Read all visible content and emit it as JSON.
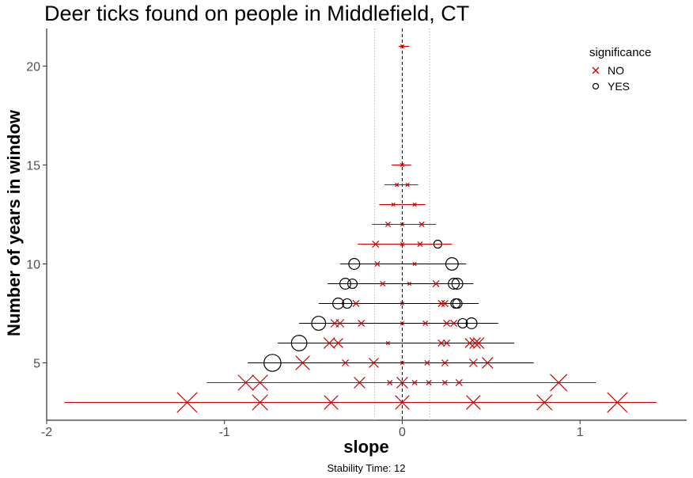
{
  "chart_data": {
    "type": "scatter",
    "title": "Deer ticks found on people in Middlefield, CT",
    "xlabel": "slope",
    "ylabel": "Number of years in window",
    "caption": "Stability Time: 12",
    "xlim": [
      -2.0,
      1.6
    ],
    "ylim": [
      2.1,
      21.9
    ],
    "x_ticks": [
      -2,
      -1,
      0,
      1
    ],
    "y_ticks": [
      5,
      10,
      15,
      20
    ],
    "reference_line": 0,
    "bounds": [
      -0.155,
      0.155
    ],
    "grid": false,
    "legend": {
      "title": "significance",
      "position": "top-right",
      "entries": [
        {
          "label": "NO",
          "marker": "x",
          "color": "#cc0000"
        },
        {
          "label": "YES",
          "marker": "circle",
          "color": "#000000"
        }
      ]
    },
    "ranges": [
      {
        "y": 21,
        "min": -0.02,
        "max": 0.04,
        "color": "#cc0000"
      },
      {
        "y": 15,
        "min": -0.06,
        "max": 0.05,
        "color": "#cc0000"
      },
      {
        "y": 14,
        "min": -0.1,
        "max": 0.09,
        "color": "#cc0000"
      },
      {
        "y": 13,
        "min": -0.13,
        "max": 0.13,
        "color": "#cc0000"
      },
      {
        "y": 12,
        "min": -0.17,
        "max": 0.19,
        "color": "#cc0000"
      },
      {
        "y": 11,
        "min": -0.25,
        "max": 0.28,
        "color": "#cc0000"
      },
      {
        "y": 10,
        "min": -0.35,
        "max": 0.36,
        "color": "#000000"
      },
      {
        "y": 9,
        "min": -0.42,
        "max": 0.4,
        "color": "#000000"
      },
      {
        "y": 8,
        "min": -0.47,
        "max": 0.43,
        "color": "#000000"
      },
      {
        "y": 7,
        "min": -0.58,
        "max": 0.54,
        "color": "#000000"
      },
      {
        "y": 6,
        "min": -0.7,
        "max": 0.63,
        "color": "#000000"
      },
      {
        "y": 5,
        "min": -0.87,
        "max": 0.74,
        "color": "#000000"
      },
      {
        "y": 4,
        "min": -1.1,
        "max": 1.09,
        "color": "#cc0000"
      },
      {
        "y": 3,
        "min": -1.9,
        "max": 1.43,
        "color": "#cc0000"
      }
    ],
    "points": [
      {
        "y": 21,
        "x": 0.0,
        "sig": "NO",
        "size": 1
      },
      {
        "y": 15,
        "x": 0.0,
        "sig": "NO",
        "size": 1
      },
      {
        "y": 14,
        "x": -0.03,
        "sig": "NO",
        "size": 1
      },
      {
        "y": 14,
        "x": 0.03,
        "sig": "NO",
        "size": 1
      },
      {
        "y": 13,
        "x": -0.05,
        "sig": "NO",
        "size": 1
      },
      {
        "y": 13,
        "x": 0.07,
        "sig": "NO",
        "size": 1
      },
      {
        "y": 12,
        "x": -0.08,
        "sig": "NO",
        "size": 2
      },
      {
        "y": 12,
        "x": 0.0,
        "sig": "NO",
        "size": 1
      },
      {
        "y": 12,
        "x": 0.11,
        "sig": "NO",
        "size": 2
      },
      {
        "y": 11,
        "x": -0.15,
        "sig": "NO",
        "size": 3
      },
      {
        "y": 11,
        "x": 0.0,
        "sig": "NO",
        "size": 1
      },
      {
        "y": 11,
        "x": 0.1,
        "sig": "NO",
        "size": 2
      },
      {
        "y": 11,
        "x": 0.2,
        "sig": "YES",
        "size": 4
      },
      {
        "y": 10,
        "x": -0.27,
        "sig": "YES",
        "size": 6
      },
      {
        "y": 10,
        "x": -0.14,
        "sig": "NO",
        "size": 2
      },
      {
        "y": 10,
        "x": 0.07,
        "sig": "NO",
        "size": 1
      },
      {
        "y": 10,
        "x": 0.28,
        "sig": "YES",
        "size": 7
      },
      {
        "y": 9,
        "x": -0.32,
        "sig": "YES",
        "size": 6
      },
      {
        "y": 9,
        "x": -0.28,
        "sig": "YES",
        "size": 5
      },
      {
        "y": 9,
        "x": -0.11,
        "sig": "NO",
        "size": 2
      },
      {
        "y": 9,
        "x": 0.04,
        "sig": "NO",
        "size": 1
      },
      {
        "y": 9,
        "x": 0.19,
        "sig": "NO",
        "size": 3
      },
      {
        "y": 9,
        "x": 0.29,
        "sig": "YES",
        "size": 6
      },
      {
        "y": 9,
        "x": 0.31,
        "sig": "YES",
        "size": 6
      },
      {
        "y": 8,
        "x": -0.36,
        "sig": "YES",
        "size": 6
      },
      {
        "y": 8,
        "x": -0.31,
        "sig": "YES",
        "size": 5
      },
      {
        "y": 8,
        "x": -0.26,
        "sig": "NO",
        "size": 3
      },
      {
        "y": 8,
        "x": 0.0,
        "sig": "NO",
        "size": 1
      },
      {
        "y": 8,
        "x": 0.22,
        "sig": "NO",
        "size": 3
      },
      {
        "y": 8,
        "x": 0.24,
        "sig": "NO",
        "size": 3
      },
      {
        "y": 8,
        "x": 0.3,
        "sig": "YES",
        "size": 5
      },
      {
        "y": 8,
        "x": 0.31,
        "sig": "YES",
        "size": 5
      },
      {
        "y": 7,
        "x": -0.47,
        "sig": "YES",
        "size": 8
      },
      {
        "y": 7,
        "x": -0.38,
        "sig": "NO",
        "size": 4
      },
      {
        "y": 7,
        "x": -0.35,
        "sig": "NO",
        "size": 4
      },
      {
        "y": 7,
        "x": -0.23,
        "sig": "NO",
        "size": 3
      },
      {
        "y": 7,
        "x": 0.0,
        "sig": "NO",
        "size": 1
      },
      {
        "y": 7,
        "x": 0.13,
        "sig": "NO",
        "size": 2
      },
      {
        "y": 7,
        "x": 0.25,
        "sig": "NO",
        "size": 3
      },
      {
        "y": 7,
        "x": 0.29,
        "sig": "NO",
        "size": 3
      },
      {
        "y": 7,
        "x": 0.34,
        "sig": "YES",
        "size": 5
      },
      {
        "y": 7,
        "x": 0.39,
        "sig": "YES",
        "size": 6
      },
      {
        "y": 6,
        "x": -0.58,
        "sig": "YES",
        "size": 9
      },
      {
        "y": 6,
        "x": -0.41,
        "sig": "NO",
        "size": 6
      },
      {
        "y": 6,
        "x": -0.36,
        "sig": "NO",
        "size": 5
      },
      {
        "y": 6,
        "x": -0.08,
        "sig": "NO",
        "size": 1
      },
      {
        "y": 6,
        "x": 0.22,
        "sig": "NO",
        "size": 3
      },
      {
        "y": 6,
        "x": 0.25,
        "sig": "NO",
        "size": 3
      },
      {
        "y": 6,
        "x": 0.38,
        "sig": "NO",
        "size": 5
      },
      {
        "y": 6,
        "x": 0.41,
        "sig": "NO",
        "size": 6
      },
      {
        "y": 6,
        "x": 0.43,
        "sig": "NO",
        "size": 6
      },
      {
        "y": 5,
        "x": -0.73,
        "sig": "YES",
        "size": 10
      },
      {
        "y": 5,
        "x": -0.56,
        "sig": "NO",
        "size": 8
      },
      {
        "y": 5,
        "x": -0.32,
        "sig": "NO",
        "size": 3
      },
      {
        "y": 5,
        "x": -0.16,
        "sig": "NO",
        "size": 5
      },
      {
        "y": 5,
        "x": 0.0,
        "sig": "NO",
        "size": 1
      },
      {
        "y": 5,
        "x": 0.14,
        "sig": "NO",
        "size": 2
      },
      {
        "y": 5,
        "x": 0.24,
        "sig": "NO",
        "size": 3
      },
      {
        "y": 5,
        "x": 0.4,
        "sig": "NO",
        "size": 4
      },
      {
        "y": 5,
        "x": 0.48,
        "sig": "NO",
        "size": 6
      },
      {
        "y": 4,
        "x": -0.88,
        "sig": "NO",
        "size": 9
      },
      {
        "y": 4,
        "x": -0.8,
        "sig": "NO",
        "size": 9
      },
      {
        "y": 4,
        "x": -0.24,
        "sig": "NO",
        "size": 6
      },
      {
        "y": 4,
        "x": -0.07,
        "sig": "NO",
        "size": 2
      },
      {
        "y": 4,
        "x": 0.0,
        "sig": "NO",
        "size": 6
      },
      {
        "y": 4,
        "x": 0.07,
        "sig": "NO",
        "size": 2
      },
      {
        "y": 4,
        "x": 0.15,
        "sig": "NO",
        "size": 2
      },
      {
        "y": 4,
        "x": 0.24,
        "sig": "NO",
        "size": 2
      },
      {
        "y": 4,
        "x": 0.32,
        "sig": "NO",
        "size": 3
      },
      {
        "y": 4,
        "x": 0.88,
        "sig": "NO",
        "size": 10
      },
      {
        "y": 3,
        "x": -1.21,
        "sig": "NO",
        "size": 12
      },
      {
        "y": 3,
        "x": -0.8,
        "sig": "NO",
        "size": 9
      },
      {
        "y": 3,
        "x": -0.4,
        "sig": "NO",
        "size": 8
      },
      {
        "y": 3,
        "x": 0.0,
        "sig": "NO",
        "size": 8
      },
      {
        "y": 3,
        "x": 0.4,
        "sig": "NO",
        "size": 8
      },
      {
        "y": 3,
        "x": 0.8,
        "sig": "NO",
        "size": 9
      },
      {
        "y": 3,
        "x": 1.21,
        "sig": "NO",
        "size": 12
      }
    ]
  }
}
